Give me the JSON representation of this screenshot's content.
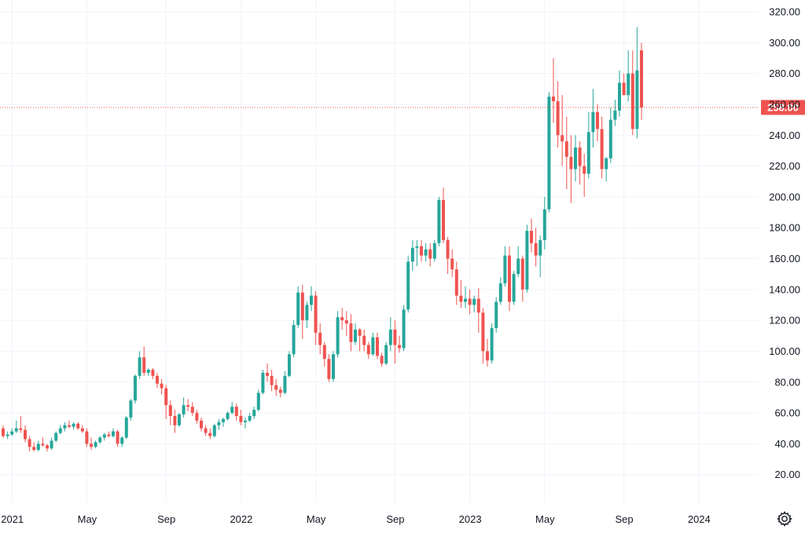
{
  "chart_data": {
    "type": "candlestick",
    "title": "",
    "xlabel": "",
    "ylabel": "",
    "ylim": [
      0,
      325
    ],
    "grid": true,
    "y_ticks": [
      "20.00",
      "40.00",
      "60.00",
      "80.00",
      "100.00",
      "120.00",
      "140.00",
      "160.00",
      "180.00",
      "200.00",
      "220.00",
      "240.00",
      "260.00",
      "280.00",
      "300.00",
      "320.00"
    ],
    "x_ticks": [
      {
        "label": "2021",
        "week": 2
      },
      {
        "label": "May",
        "week": 19
      },
      {
        "label": "Sep",
        "week": 37
      },
      {
        "label": "2022",
        "week": 54
      },
      {
        "label": "May",
        "week": 71
      },
      {
        "label": "Sep",
        "week": 89
      },
      {
        "label": "2023",
        "week": 106
      },
      {
        "label": "May",
        "week": 123
      },
      {
        "label": "Sep",
        "week": 141
      },
      {
        "label": "2024",
        "week": 158
      }
    ],
    "last_price": "258.00",
    "last_price_value": 258,
    "colors": {
      "up": "#26a69a",
      "down": "#ef5350",
      "label_bg": "#ef5350",
      "grid": "#f0f3fa",
      "text": "#131722"
    },
    "candles": [
      [
        50,
        52,
        44,
        45
      ],
      [
        45,
        48,
        43,
        46
      ],
      [
        46,
        50,
        45,
        48
      ],
      [
        48,
        55,
        47,
        50
      ],
      [
        50,
        58,
        47,
        49
      ],
      [
        49,
        52,
        41,
        43
      ],
      [
        43,
        45,
        35,
        38
      ],
      [
        38,
        41,
        35,
        36
      ],
      [
        36,
        42,
        35,
        40
      ],
      [
        40,
        44,
        38,
        39
      ],
      [
        39,
        40,
        35,
        37
      ],
      [
        37,
        44,
        36,
        42
      ],
      [
        42,
        48,
        41,
        47
      ],
      [
        47,
        52,
        46,
        50
      ],
      [
        50,
        54,
        48,
        52
      ],
      [
        52,
        55,
        50,
        51
      ],
      [
        51,
        54,
        49,
        53
      ],
      [
        53,
        54,
        49,
        50
      ],
      [
        50,
        52,
        47,
        48
      ],
      [
        48,
        50,
        38,
        40
      ],
      [
        40,
        44,
        36,
        38
      ],
      [
        38,
        42,
        37,
        41
      ],
      [
        41,
        45,
        40,
        44
      ],
      [
        44,
        47,
        42,
        46
      ],
      [
        46,
        48,
        44,
        45
      ],
      [
        45,
        50,
        44,
        48
      ],
      [
        48,
        49,
        38,
        40
      ],
      [
        40,
        45,
        38,
        44
      ],
      [
        44,
        58,
        43,
        57
      ],
      [
        57,
        69,
        55,
        68
      ],
      [
        68,
        85,
        66,
        84
      ],
      [
        84,
        100,
        82,
        96
      ],
      [
        96,
        103,
        84,
        86
      ],
      [
        86,
        89,
        84,
        88
      ],
      [
        88,
        89,
        82,
        84
      ],
      [
        84,
        86,
        76,
        79
      ],
      [
        79,
        82,
        72,
        76
      ],
      [
        76,
        78,
        56,
        65
      ],
      [
        65,
        68,
        52,
        58
      ],
      [
        58,
        62,
        47,
        52
      ],
      [
        52,
        60,
        51,
        59
      ],
      [
        59,
        70,
        57,
        65
      ],
      [
        65,
        69,
        61,
        64
      ],
      [
        64,
        67,
        58,
        60
      ],
      [
        60,
        62,
        53,
        55
      ],
      [
        55,
        57,
        48,
        50
      ],
      [
        50,
        52,
        45,
        47
      ],
      [
        47,
        50,
        43,
        45
      ],
      [
        45,
        53,
        44,
        52
      ],
      [
        52,
        56,
        49,
        54
      ],
      [
        54,
        57,
        51,
        56
      ],
      [
        56,
        61,
        55,
        60
      ],
      [
        60,
        67,
        59,
        64
      ],
      [
        64,
        66,
        55,
        58
      ],
      [
        58,
        62,
        52,
        54
      ],
      [
        54,
        57,
        50,
        55
      ],
      [
        55,
        60,
        54,
        58
      ],
      [
        58,
        64,
        56,
        62
      ],
      [
        62,
        75,
        61,
        73
      ],
      [
        73,
        88,
        72,
        86
      ],
      [
        86,
        92,
        80,
        84
      ],
      [
        84,
        88,
        74,
        78
      ],
      [
        78,
        82,
        71,
        75
      ],
      [
        75,
        77,
        70,
        73
      ],
      [
        73,
        87,
        72,
        84
      ],
      [
        84,
        100,
        83,
        98
      ],
      [
        98,
        120,
        96,
        117
      ],
      [
        117,
        142,
        115,
        138
      ],
      [
        138,
        143,
        108,
        120
      ],
      [
        120,
        132,
        115,
        130
      ],
      [
        130,
        142,
        126,
        136
      ],
      [
        136,
        139,
        104,
        112
      ],
      [
        112,
        118,
        98,
        104
      ],
      [
        104,
        106,
        90,
        95
      ],
      [
        95,
        98,
        80,
        82
      ],
      [
        82,
        100,
        80,
        98
      ],
      [
        98,
        126,
        96,
        122
      ],
      [
        122,
        128,
        114,
        120
      ],
      [
        120,
        126,
        110,
        118
      ],
      [
        118,
        124,
        100,
        106
      ],
      [
        106,
        118,
        104,
        114
      ],
      [
        114,
        115,
        100,
        110
      ],
      [
        110,
        114,
        100,
        104
      ],
      [
        104,
        106,
        95,
        98
      ],
      [
        98,
        112,
        97,
        109
      ],
      [
        109,
        112,
        95,
        97
      ],
      [
        97,
        99,
        90,
        92
      ],
      [
        92,
        106,
        91,
        104
      ],
      [
        104,
        122,
        100,
        114
      ],
      [
        114,
        120,
        92,
        104
      ],
      [
        104,
        110,
        99,
        102
      ],
      [
        102,
        130,
        100,
        127
      ],
      [
        127,
        162,
        125,
        158
      ],
      [
        158,
        172,
        152,
        167
      ],
      [
        167,
        172,
        155,
        168
      ],
      [
        168,
        172,
        158,
        162
      ],
      [
        162,
        170,
        158,
        166
      ],
      [
        166,
        170,
        155,
        160
      ],
      [
        160,
        172,
        158,
        170
      ],
      [
        170,
        200,
        168,
        198
      ],
      [
        198,
        206,
        170,
        172
      ],
      [
        172,
        174,
        150,
        160
      ],
      [
        160,
        166,
        148,
        153
      ],
      [
        153,
        158,
        130,
        136
      ],
      [
        136,
        146,
        128,
        132
      ],
      [
        132,
        142,
        128,
        134
      ],
      [
        134,
        140,
        124,
        130
      ],
      [
        130,
        136,
        125,
        134
      ],
      [
        134,
        141,
        112,
        125
      ],
      [
        125,
        128,
        92,
        100
      ],
      [
        100,
        108,
        90,
        94
      ],
      [
        94,
        118,
        92,
        115
      ],
      [
        115,
        135,
        112,
        132
      ],
      [
        132,
        148,
        130,
        144
      ],
      [
        144,
        168,
        142,
        162
      ],
      [
        162,
        168,
        126,
        132
      ],
      [
        132,
        152,
        130,
        150
      ],
      [
        150,
        168,
        148,
        160
      ],
      [
        160,
        162,
        132,
        140
      ],
      [
        140,
        182,
        138,
        178
      ],
      [
        178,
        186,
        164,
        170
      ],
      [
        170,
        180,
        155,
        162
      ],
      [
        162,
        175,
        148,
        172
      ],
      [
        172,
        200,
        166,
        192
      ],
      [
        192,
        268,
        190,
        265
      ],
      [
        265,
        290,
        248,
        262
      ],
      [
        262,
        275,
        232,
        240
      ],
      [
        240,
        266,
        220,
        236
      ],
      [
        236,
        252,
        205,
        226
      ],
      [
        226,
        240,
        196,
        218
      ],
      [
        218,
        240,
        210,
        232
      ],
      [
        232,
        236,
        208,
        220
      ],
      [
        220,
        228,
        200,
        215
      ],
      [
        215,
        255,
        212,
        242
      ],
      [
        242,
        270,
        232,
        255
      ],
      [
        255,
        260,
        236,
        244
      ],
      [
        244,
        252,
        212,
        218
      ],
      [
        218,
        226,
        210,
        225
      ],
      [
        225,
        258,
        222,
        250
      ],
      [
        250,
        263,
        246,
        256
      ],
      [
        256,
        282,
        252,
        274
      ],
      [
        274,
        280,
        266,
        266
      ],
      [
        266,
        295,
        262,
        280
      ],
      [
        280,
        295,
        240,
        244
      ],
      [
        244,
        310,
        238,
        282
      ],
      [
        295,
        300,
        250,
        258
      ]
    ]
  }
}
